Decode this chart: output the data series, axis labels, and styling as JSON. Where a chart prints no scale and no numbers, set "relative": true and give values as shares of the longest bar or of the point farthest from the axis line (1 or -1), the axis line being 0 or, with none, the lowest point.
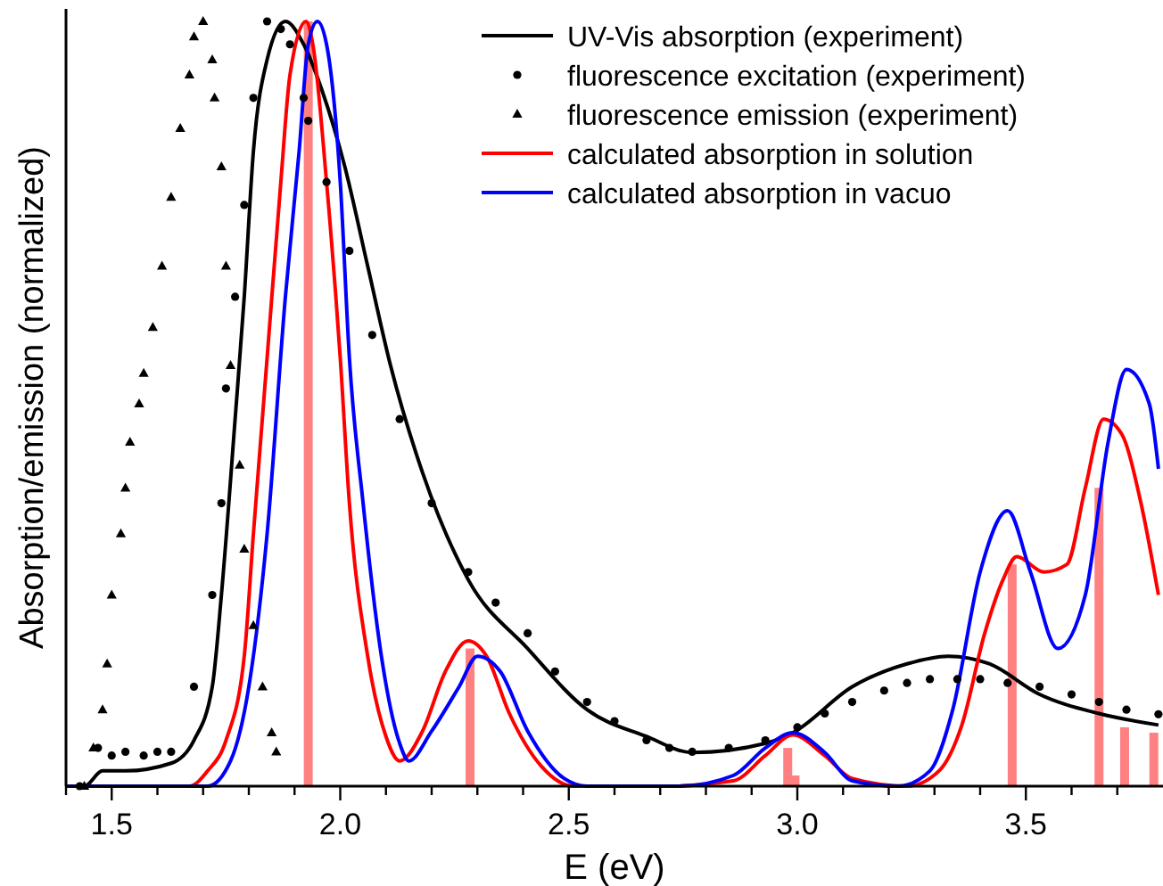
{
  "chart_data": {
    "type": "line",
    "relative": true,
    "xlabel": "E (eV)",
    "ylabel": "Absorption/emission (normalized)",
    "legend": "top right",
    "grid": false,
    "xlim": [
      1.4,
      3.8
    ],
    "xticks": [
      {
        "value": 1.4,
        "label": null
      },
      1.5,
      {
        "value": 1.6,
        "label": null
      },
      {
        "value": 1.7,
        "label": null
      },
      {
        "value": 1.8,
        "label": null
      },
      {
        "value": 1.9,
        "label": null
      },
      {
        "value": 2.0,
        "label": "2.0"
      },
      {
        "value": 2.1,
        "label": null
      },
      {
        "value": 2.2,
        "label": null
      },
      {
        "value": 2.3,
        "label": null
      },
      {
        "value": 2.4,
        "label": null
      },
      2.5,
      {
        "value": 2.6,
        "label": null
      },
      {
        "value": 2.7,
        "label": null
      },
      {
        "value": 2.8,
        "label": null
      },
      {
        "value": 2.9,
        "label": null
      },
      {
        "value": 3.0,
        "label": "3.0"
      },
      {
        "value": 3.1,
        "label": null
      },
      {
        "value": 3.2,
        "label": null
      },
      {
        "value": 3.3,
        "label": null
      },
      {
        "value": 3.4,
        "label": null
      },
      3.5,
      {
        "value": 3.6,
        "label": null
      },
      {
        "value": 3.7,
        "label": null
      }
    ],
    "series": [
      {
        "type": "bar",
        "color": "#ff8080",
        "x": [
          1.93,
          2.284,
          2.979,
          2.995,
          3.47,
          3.66,
          3.716,
          3.78
        ],
        "values": [
          1.0,
          0.18,
          0.05,
          0.014,
          0.29,
          0.39,
          0.077,
          0.07
        ]
      },
      {
        "name": "UV-Vis absorption (experiment)",
        "color": "#000000",
        "marker": "none",
        "line_style": "solid",
        "x": [
          1.4,
          1.44,
          1.48,
          1.53,
          1.63,
          1.68,
          1.72,
          1.74,
          1.77,
          1.79,
          1.81,
          1.84,
          1.88,
          1.92,
          1.96,
          2.01,
          2.06,
          2.11,
          2.18,
          2.28,
          2.41,
          2.54,
          2.67,
          2.77,
          2.93,
          2.99,
          3.12,
          3.24,
          3.33,
          3.42,
          3.53,
          3.66,
          3.79
        ],
        "values": [
          0,
          0.0,
          0.02,
          0.02,
          0.03,
          0.06,
          0.13,
          0.25,
          0.48,
          0.64,
          0.83,
          0.95,
          1.0,
          0.97,
          0.91,
          0.81,
          0.68,
          0.55,
          0.41,
          0.27,
          0.18,
          0.1,
          0.065,
          0.044,
          0.056,
          0.07,
          0.13,
          0.16,
          0.17,
          0.16,
          0.12,
          0.095,
          0.08
        ]
      },
      {
        "type": "scatter",
        "name": "fluorescence excitation (experiment)",
        "color": "#000000",
        "marker": "circle",
        "x": [
          1.43,
          1.47,
          1.5,
          1.53,
          1.57,
          1.6,
          1.63,
          1.68,
          1.72,
          1.74,
          1.75,
          1.77,
          1.79,
          1.81,
          1.84,
          1.87,
          1.89,
          1.92,
          1.93,
          1.97,
          2.02,
          2.07,
          2.13,
          2.2,
          2.28,
          2.34,
          2.41,
          2.47,
          2.54,
          2.6,
          2.67,
          2.72,
          2.77,
          2.85,
          2.93,
          3.0,
          3.06,
          3.12,
          3.19,
          3.24,
          3.29,
          3.35,
          3.4,
          3.46,
          3.53,
          3.6,
          3.66,
          3.72,
          3.79
        ],
        "values": [
          0.0,
          0.05,
          0.04,
          0.045,
          0.04,
          0.045,
          0.045,
          0.13,
          0.25,
          0.37,
          0.52,
          0.64,
          0.76,
          0.9,
          1.0,
          0.99,
          0.97,
          0.9,
          0.87,
          0.79,
          0.7,
          0.59,
          0.48,
          0.37,
          0.28,
          0.24,
          0.2,
          0.15,
          0.11,
          0.085,
          0.06,
          0.05,
          0.045,
          0.05,
          0.06,
          0.077,
          0.095,
          0.11,
          0.125,
          0.135,
          0.14,
          0.14,
          0.14,
          0.135,
          0.13,
          0.12,
          0.11,
          0.1,
          0.094
        ]
      },
      {
        "type": "scatter",
        "name": "fluorescence emission (experiment)",
        "color": "#000000",
        "marker": "triangle",
        "x": [
          1.44,
          1.46,
          1.48,
          1.49,
          1.5,
          1.52,
          1.53,
          1.54,
          1.56,
          1.57,
          1.59,
          1.61,
          1.63,
          1.65,
          1.67,
          1.68,
          1.7,
          1.72,
          1.725,
          1.74,
          1.75,
          1.76,
          1.78,
          1.79,
          1.81,
          1.83,
          1.85,
          1.86
        ],
        "values": [
          0.0,
          0.05,
          0.1,
          0.16,
          0.25,
          0.33,
          0.39,
          0.45,
          0.5,
          0.54,
          0.6,
          0.68,
          0.77,
          0.86,
          0.93,
          0.98,
          1.0,
          0.95,
          0.9,
          0.81,
          0.68,
          0.55,
          0.42,
          0.31,
          0.21,
          0.13,
          0.07,
          0.045
        ]
      },
      {
        "name": "calculated absorption in solution",
        "color": "#ff0000",
        "marker": "none",
        "line_style": "solid",
        "x": [
          1.4,
          1.67,
          1.71,
          1.75,
          1.79,
          1.81,
          1.84,
          1.87,
          1.89,
          1.925,
          1.94,
          1.97,
          2.0,
          2.02,
          2.06,
          2.1,
          2.13,
          2.18,
          2.23,
          2.28,
          2.32,
          2.37,
          2.44,
          2.51,
          2.71,
          2.86,
          2.93,
          2.99,
          3.06,
          3.12,
          3.24,
          3.31,
          3.36,
          3.41,
          3.45,
          3.48,
          3.54,
          3.59,
          3.63,
          3.67,
          3.71,
          3.75,
          3.79
        ],
        "values": [
          0,
          0.0,
          0.02,
          0.06,
          0.17,
          0.33,
          0.56,
          0.79,
          0.93,
          1.0,
          0.97,
          0.79,
          0.56,
          0.37,
          0.17,
          0.065,
          0.033,
          0.072,
          0.15,
          0.19,
          0.17,
          0.095,
          0.026,
          0.0,
          0.0,
          0.007,
          0.04,
          0.067,
          0.04,
          0.01,
          0.0,
          0.02,
          0.08,
          0.2,
          0.27,
          0.3,
          0.28,
          0.29,
          0.39,
          0.48,
          0.46,
          0.375,
          0.25
        ]
      },
      {
        "name": "calculated absorption in vacuo",
        "color": "#0000ff",
        "marker": "none",
        "line_style": "solid",
        "x": [
          1.4,
          1.71,
          1.76,
          1.8,
          1.84,
          1.88,
          1.91,
          1.93,
          1.95,
          1.97,
          2.0,
          2.02,
          2.05,
          2.09,
          2.13,
          2.15,
          2.2,
          2.26,
          2.3,
          2.35,
          2.41,
          2.49,
          2.54,
          2.74,
          2.86,
          2.93,
          2.99,
          3.06,
          3.12,
          3.22,
          3.29,
          3.34,
          3.4,
          3.46,
          3.51,
          3.57,
          3.63,
          3.68,
          3.72,
          3.77,
          3.79
        ],
        "values": [
          0,
          0.0,
          0.033,
          0.13,
          0.33,
          0.64,
          0.83,
          0.97,
          1.0,
          0.97,
          0.79,
          0.56,
          0.37,
          0.17,
          0.056,
          0.033,
          0.072,
          0.13,
          0.17,
          0.15,
          0.072,
          0.01,
          0.0,
          0.0,
          0.014,
          0.05,
          0.07,
          0.044,
          0.007,
          0.0,
          0.02,
          0.1,
          0.28,
          0.36,
          0.28,
          0.18,
          0.25,
          0.45,
          0.545,
          0.5,
          0.415
        ]
      }
    ]
  }
}
